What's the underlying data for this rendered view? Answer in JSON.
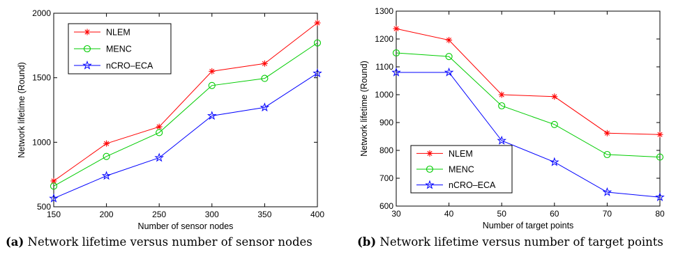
{
  "chart_data": [
    {
      "type": "line",
      "title": "",
      "xlabel": "Number of sensor nodes",
      "ylabel": "Network lifetime (Round)",
      "xlim": [
        150,
        400
      ],
      "ylim": [
        500,
        2000
      ],
      "xticks": [
        "150",
        "200",
        "250",
        "300",
        "350",
        "400"
      ],
      "yticks": [
        "500",
        "1000",
        "1500",
        "2000"
      ],
      "legend_position": "top-left",
      "x": [
        150,
        200,
        250,
        300,
        350,
        400
      ],
      "series": [
        {
          "name": "NLEM",
          "color": "#ff0000",
          "marker": "asterisk",
          "values": [
            700,
            990,
            1120,
            1550,
            1610,
            1925
          ]
        },
        {
          "name": "MENC",
          "color": "#00cc00",
          "marker": "circle",
          "values": [
            660,
            890,
            1075,
            1440,
            1495,
            1770
          ]
        },
        {
          "name": "nCRO–ECA",
          "color": "#0000ff",
          "marker": "star",
          "values": [
            565,
            740,
            880,
            1205,
            1270,
            1535
          ]
        }
      ],
      "caption_label": "(a)",
      "caption_text": " Network lifetime versus number of sensor nodes"
    },
    {
      "type": "line",
      "title": "",
      "xlabel": "Number of target points",
      "ylabel": "Network lifetime (Round)",
      "xlim": [
        30,
        80
      ],
      "ylim": [
        600,
        1300
      ],
      "xticks": [
        "30",
        "40",
        "50",
        "60",
        "70",
        "80"
      ],
      "yticks": [
        "600",
        "700",
        "800",
        "900",
        "1000",
        "1100",
        "1200",
        "1300"
      ],
      "legend_position": "bottom-left",
      "x": [
        30,
        40,
        50,
        60,
        70,
        80
      ],
      "series": [
        {
          "name": "NLEM",
          "color": "#ff0000",
          "marker": "asterisk",
          "values": [
            1237,
            1196,
            1000,
            993,
            862,
            857
          ]
        },
        {
          "name": "MENC",
          "color": "#00cc00",
          "marker": "circle",
          "values": [
            1150,
            1137,
            960,
            893,
            785,
            776
          ]
        },
        {
          "name": "nCRO–ECA",
          "color": "#0000ff",
          "marker": "star",
          "values": [
            1080,
            1080,
            835,
            758,
            650,
            632
          ]
        }
      ],
      "caption_label": "(b)",
      "caption_text": " Network lifetime versus number of target points"
    }
  ]
}
